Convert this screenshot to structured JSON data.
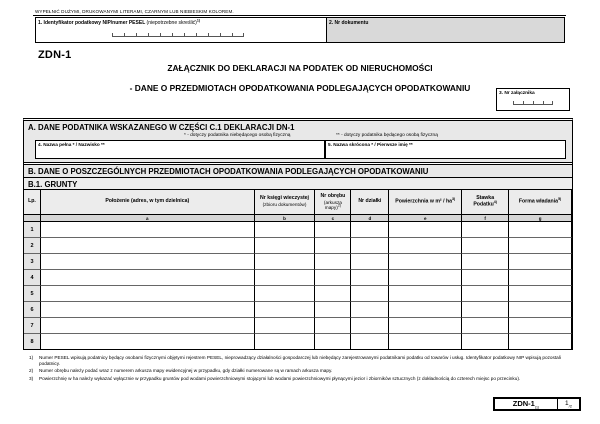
{
  "page": {
    "instruction": "WYPEŁNIĆ DUŻYMI, DRUKOWANYMI LITERAMI, CZARNYM LUB NIEBIESKIM KOLOREM.",
    "form_code": "ZDN-1",
    "title_line1": "ZAŁĄCZNIK DO DEKLARACJI NA PODATEK OD NIERUCHOMOŚCI",
    "title_line2": "- DANE O PRZEDMIOTACH OPODATKOWANIA PODLEGAJĄCYCH OPODATKOWANIU"
  },
  "header_fields": {
    "field1_label": "1. Identyfikator podatkowy NIP/numer PESEL ",
    "field1_hint": "(niepotrzebne skreślić)",
    "field1_sup": "1)",
    "field2_label": "2. Nr dokumentu",
    "field3_label": "3. Nr załącznika"
  },
  "section_a": {
    "header": "A.  DANE PODATNIKA WSKAZANEGO W CZĘŚCI C.1 DEKLARACJI DN-1",
    "note_single": "* - dotyczy podatnika niebędącego osobą fizyczną",
    "note_double": "** - dotyczy podatnika będącego osobą fizyczną",
    "field4_label": "4. Nazwa pełna * / Nazwisko **",
    "field5_label": "5. Nazwa skrócona * / Pierwsze imię **"
  },
  "section_b": {
    "header": "B.  DANE O POSZCZEGÓLNYCH PRZEDMIOTACH OPODATKOWANIA PODLEGAJĄCYCH OPODATKOWANIU",
    "subsection": "B.1.  GRUNTY"
  },
  "grunty_table": {
    "col_lp": "Lp.",
    "columns": [
      {
        "label": "Położenie (adres, w tym dzielnica)",
        "sublabel": "",
        "sup": "",
        "letter": "a"
      },
      {
        "label": "Nr księgi wieczystej",
        "sublabel": "(zbioru dokumentów)",
        "sup": "",
        "letter": "b"
      },
      {
        "label": "Nr obrębu",
        "sublabel": "(arkusza mapy)",
        "sup": "2)",
        "letter": "c"
      },
      {
        "label": "Nr działki",
        "sublabel": "",
        "sup": "",
        "letter": "d"
      },
      {
        "label": "Powierzchnia w m² / ha",
        "sublabel": "",
        "sup": "3)",
        "letter": "e"
      },
      {
        "label": "Stawka",
        "sublabel": "Podatku",
        "sup": "4)",
        "letter": "f"
      },
      {
        "label": "Forma władania",
        "sublabel": "",
        "sup": "5)",
        "letter": "g"
      }
    ],
    "row_numbers": [
      "1",
      "2",
      "3",
      "4",
      "5",
      "6",
      "7",
      "8"
    ]
  },
  "footnotes": [
    {
      "num": "1)",
      "text": "Numer PESEL wpisują podatnicy będący osobami fizycznymi objętymi rejestrem PESEL, nieprowadzący działalności gospodarczej lub niebędący zarejestrowanymi podatnikami podatku od towarów i usług. Identyfikator podatkowy NIP wpisują pozostali podatnicy."
    },
    {
      "num": "2)",
      "text": "Numer obrębu należy podać wraz z numerem arkusza mapy ewidencyjnej w przypadku, gdy działki numerowane są w ramach arkusza mapy."
    },
    {
      "num": "3)",
      "text": "Powierzchnię w ha należy wykazać wyłącznie w przypadku gruntów pod wodami powierzchniowymi stojącymi lub wodami powierzchniowymi płynącymi jezior i zbiorników sztucznych (z dokładnością do czterech miejsc po przecinku)."
    }
  ],
  "footer": {
    "code": "ZDN-1",
    "code_sub": "(1)",
    "page": "1",
    "page_suffix": "/2"
  },
  "colors": {
    "band_gray": "#e8e8e8",
    "box_gray": "#d9d9d9",
    "border": "#000000"
  }
}
